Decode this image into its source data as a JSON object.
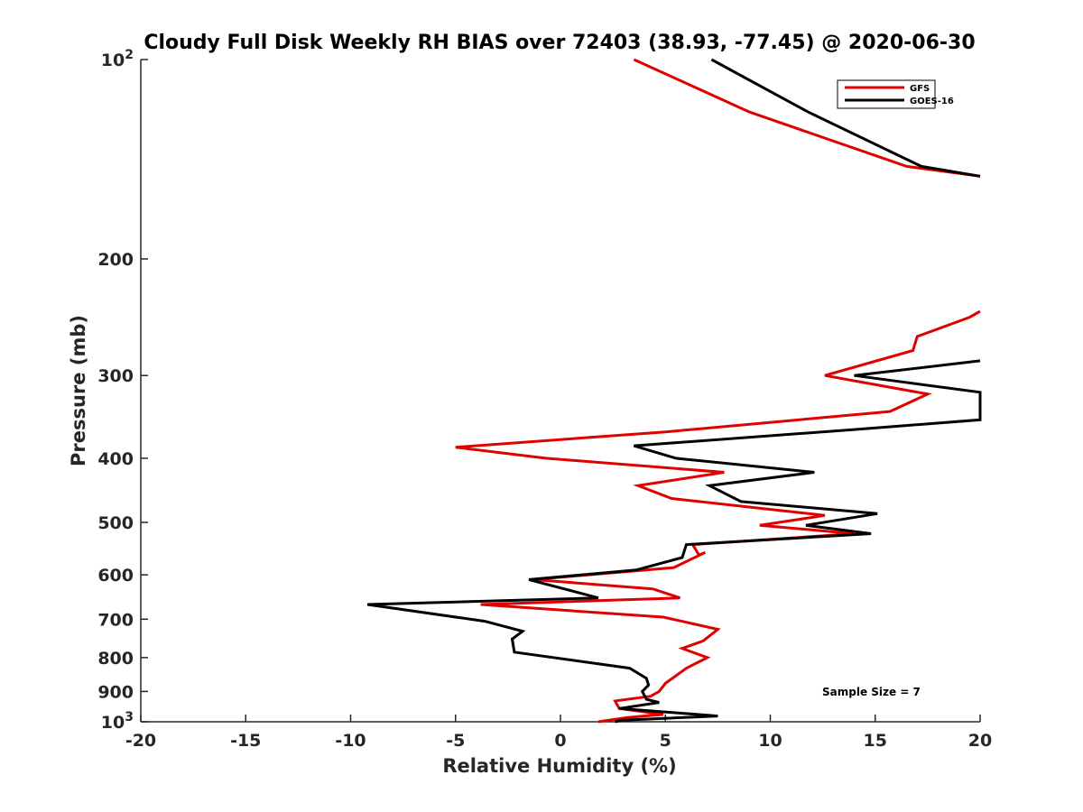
{
  "chart_data": {
    "type": "line",
    "title": "Cloudy Full Disk Weekly RH BIAS over 72403 (38.93, -77.45) @ 2020-06-30",
    "xlabel": "Relative Humidity (%)",
    "ylabel": "Pressure (mb)",
    "xlim": [
      -20,
      20
    ],
    "ylim": [
      100,
      1000
    ],
    "y_scale": "log",
    "y_reversed": true,
    "grid": false,
    "x_ticks": [
      -20,
      -15,
      -10,
      -5,
      0,
      5,
      10,
      15,
      20
    ],
    "x_tick_labels": [
      "-20",
      "-15",
      "-10",
      "-5",
      "0",
      "5",
      "10",
      "15",
      "20"
    ],
    "y_ticks": [
      100,
      200,
      300,
      400,
      500,
      600,
      700,
      800,
      900,
      1000
    ],
    "y_tick_labels": [
      {
        "base": "10",
        "exp": "2"
      },
      {
        "base": "200",
        "exp": ""
      },
      {
        "base": "300",
        "exp": ""
      },
      {
        "base": "400",
        "exp": ""
      },
      {
        "base": "500",
        "exp": ""
      },
      {
        "base": "600",
        "exp": ""
      },
      {
        "base": "700",
        "exp": ""
      },
      {
        "base": "800",
        "exp": ""
      },
      {
        "base": "900",
        "exp": ""
      },
      {
        "base": "10",
        "exp": "3"
      }
    ],
    "legend_position": "top-right",
    "annotation": "Sample Size = 7",
    "series": [
      {
        "name": "GFS",
        "color": "#e00000",
        "segments": [
          [
            [
              3.5,
              100
            ],
            [
              9.0,
              120
            ],
            [
              16.5,
              145
            ],
            [
              20.0,
              150
            ]
          ],
          [
            [
              20.0,
              240
            ],
            [
              19.5,
              245
            ],
            [
              17.0,
              262
            ],
            [
              16.8,
              275
            ],
            [
              12.6,
              300
            ],
            [
              17.5,
              320
            ],
            [
              15.7,
              340
            ],
            [
              5.0,
              365
            ],
            [
              -5.0,
              385
            ],
            [
              -0.7,
              400
            ],
            [
              7.8,
              420
            ],
            [
              3.7,
              440
            ],
            [
              5.3,
              460
            ],
            [
              12.6,
              488
            ],
            [
              9.5,
              505
            ],
            [
              14.0,
              520
            ],
            [
              6.3,
              540
            ],
            [
              6.6,
              560
            ],
            [
              6.9,
              555
            ],
            [
              5.4,
              585
            ],
            [
              -1.3,
              610
            ],
            [
              4.4,
              630
            ],
            [
              5.7,
              650
            ],
            [
              -3.8,
              665
            ],
            [
              4.9,
              695
            ],
            [
              7.5,
              725
            ],
            [
              6.8,
              755
            ],
            [
              5.8,
              775
            ],
            [
              7.0,
              800
            ],
            [
              6.0,
              830
            ],
            [
              5.0,
              875
            ],
            [
              4.7,
              900
            ],
            [
              4.3,
              915
            ],
            [
              2.6,
              930
            ],
            [
              2.8,
              955
            ],
            [
              4.9,
              975
            ],
            [
              3.2,
              985
            ],
            [
              1.8,
              1000
            ]
          ]
        ]
      },
      {
        "name": "GOES-16",
        "color": "#000000",
        "segments": [
          [
            [
              7.2,
              100
            ],
            [
              11.8,
              120
            ],
            [
              17.2,
              145
            ],
            [
              20.0,
              150
            ]
          ],
          [
            [
              20.0,
              285
            ],
            [
              14.0,
              300
            ],
            [
              20.0,
              318
            ],
            [
              20.0,
              350
            ],
            [
              14.0,
              362
            ],
            [
              3.5,
              383
            ],
            [
              5.5,
              400
            ],
            [
              12.1,
              420
            ],
            [
              7.1,
              440
            ],
            [
              8.6,
              465
            ],
            [
              15.1,
              485
            ],
            [
              11.7,
              505
            ],
            [
              14.8,
              520
            ],
            [
              6.0,
              540
            ],
            [
              5.8,
              565
            ],
            [
              3.6,
              590
            ],
            [
              -1.5,
              610
            ],
            [
              1.8,
              650
            ],
            [
              -9.2,
              665
            ],
            [
              -3.6,
              705
            ],
            [
              -1.8,
              730
            ],
            [
              -2.3,
              750
            ],
            [
              -2.2,
              785
            ],
            [
              3.3,
              830
            ],
            [
              4.1,
              860
            ],
            [
              4.2,
              880
            ],
            [
              3.9,
              900
            ],
            [
              4.1,
              925
            ],
            [
              4.7,
              935
            ],
            [
              2.8,
              955
            ],
            [
              7.5,
              980
            ],
            [
              2.9,
              995
            ],
            [
              2.6,
              1000
            ]
          ]
        ]
      }
    ]
  }
}
